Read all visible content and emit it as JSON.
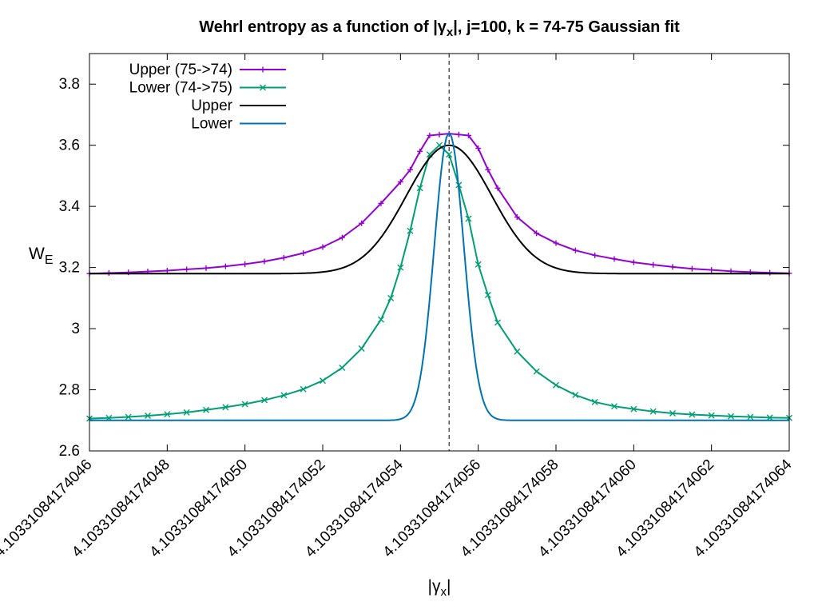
{
  "chart_data": {
    "type": "line",
    "title": "Wehrl entropy as a function of |γ",
    "title_sub": "x",
    "title_rest": "|,  j=100, k = 74-75 Gaussian fit",
    "xlabel": "|γ",
    "xlabel_sub": "x",
    "xlabel_rest": "|",
    "ylabel": "W",
    "ylabel_sub": "E",
    "x_base": "4.10331084174",
    "x_range": [
      46,
      64
    ],
    "ylim": [
      2.6,
      3.9
    ],
    "x_ticks": [
      46,
      48,
      50,
      52,
      54,
      56,
      58,
      60,
      62,
      64
    ],
    "x_tick_labels": [
      "4.10331084174046",
      "4.10331084174048",
      "4.10331084174050",
      "4.10331084174052",
      "4.10331084174054",
      "4.10331084174056",
      "4.10331084174058",
      "4.10331084174060",
      "4.10331084174062",
      "4.10331084174064"
    ],
    "y_ticks": [
      2.6,
      2.8,
      3.0,
      3.2,
      3.4,
      3.6,
      3.8
    ],
    "y_tick_labels": [
      "2.6",
      "2.8",
      "3",
      "3.2",
      "3.4",
      "3.6",
      "3.8"
    ],
    "vline_x": 55.25,
    "grid": false,
    "legend_position": "top-left",
    "series": [
      {
        "name": "Upper (75->74)",
        "color": "#9400d3",
        "marker": "plus",
        "x": [
          46.0,
          46.5,
          47.0,
          47.5,
          48.0,
          48.5,
          49.0,
          49.5,
          50.0,
          50.5,
          51.0,
          51.5,
          52.0,
          52.5,
          53.0,
          53.5,
          54.0,
          54.25,
          54.5,
          54.75,
          55.0,
          55.25,
          55.5,
          55.75,
          56.0,
          56.25,
          56.5,
          57.0,
          57.5,
          58.0,
          58.5,
          59.0,
          59.5,
          60.0,
          60.5,
          61.0,
          61.5,
          62.0,
          62.5,
          63.0,
          63.5,
          64.0
        ],
        "values": [
          3.18,
          3.182,
          3.184,
          3.187,
          3.19,
          3.194,
          3.198,
          3.204,
          3.211,
          3.22,
          3.232,
          3.247,
          3.267,
          3.298,
          3.345,
          3.41,
          3.48,
          3.52,
          3.58,
          3.632,
          3.635,
          3.638,
          3.635,
          3.632,
          3.59,
          3.52,
          3.46,
          3.365,
          3.312,
          3.28,
          3.256,
          3.24,
          3.228,
          3.217,
          3.209,
          3.202,
          3.196,
          3.192,
          3.188,
          3.185,
          3.183,
          3.181
        ]
      },
      {
        "name": "Lower (74->75)",
        "color": "#009e73",
        "marker": "cross",
        "x": [
          46.0,
          46.5,
          47.0,
          47.5,
          48.0,
          48.5,
          49.0,
          49.5,
          50.0,
          50.5,
          51.0,
          51.5,
          52.0,
          52.5,
          53.0,
          53.5,
          53.75,
          54.0,
          54.25,
          54.5,
          54.75,
          55.0,
          55.25,
          55.5,
          55.75,
          56.0,
          56.25,
          56.5,
          57.0,
          57.5,
          58.0,
          58.5,
          59.0,
          59.5,
          60.0,
          60.5,
          61.0,
          61.5,
          62.0,
          62.5,
          63.0,
          63.5,
          64.0
        ],
        "values": [
          2.706,
          2.708,
          2.711,
          2.715,
          2.72,
          2.726,
          2.734,
          2.743,
          2.753,
          2.766,
          2.782,
          2.802,
          2.83,
          2.872,
          2.935,
          3.03,
          3.1,
          3.2,
          3.32,
          3.46,
          3.57,
          3.6,
          3.57,
          3.47,
          3.36,
          3.21,
          3.11,
          3.02,
          2.925,
          2.86,
          2.815,
          2.783,
          2.76,
          2.746,
          2.737,
          2.729,
          2.723,
          2.719,
          2.716,
          2.713,
          2.711,
          2.709,
          2.708
        ]
      },
      {
        "name": "Upper",
        "color": "#000000",
        "marker": "none",
        "gaussian": {
          "base": 3.18,
          "amplitude": 0.42,
          "center": 55.25,
          "sigma": 1.1
        }
      },
      {
        "name": "Lower",
        "color": "#0072b2",
        "marker": "none",
        "gaussian": {
          "base": 2.7,
          "amplitude": 0.94,
          "center": 55.25,
          "sigma": 0.38
        }
      }
    ]
  }
}
